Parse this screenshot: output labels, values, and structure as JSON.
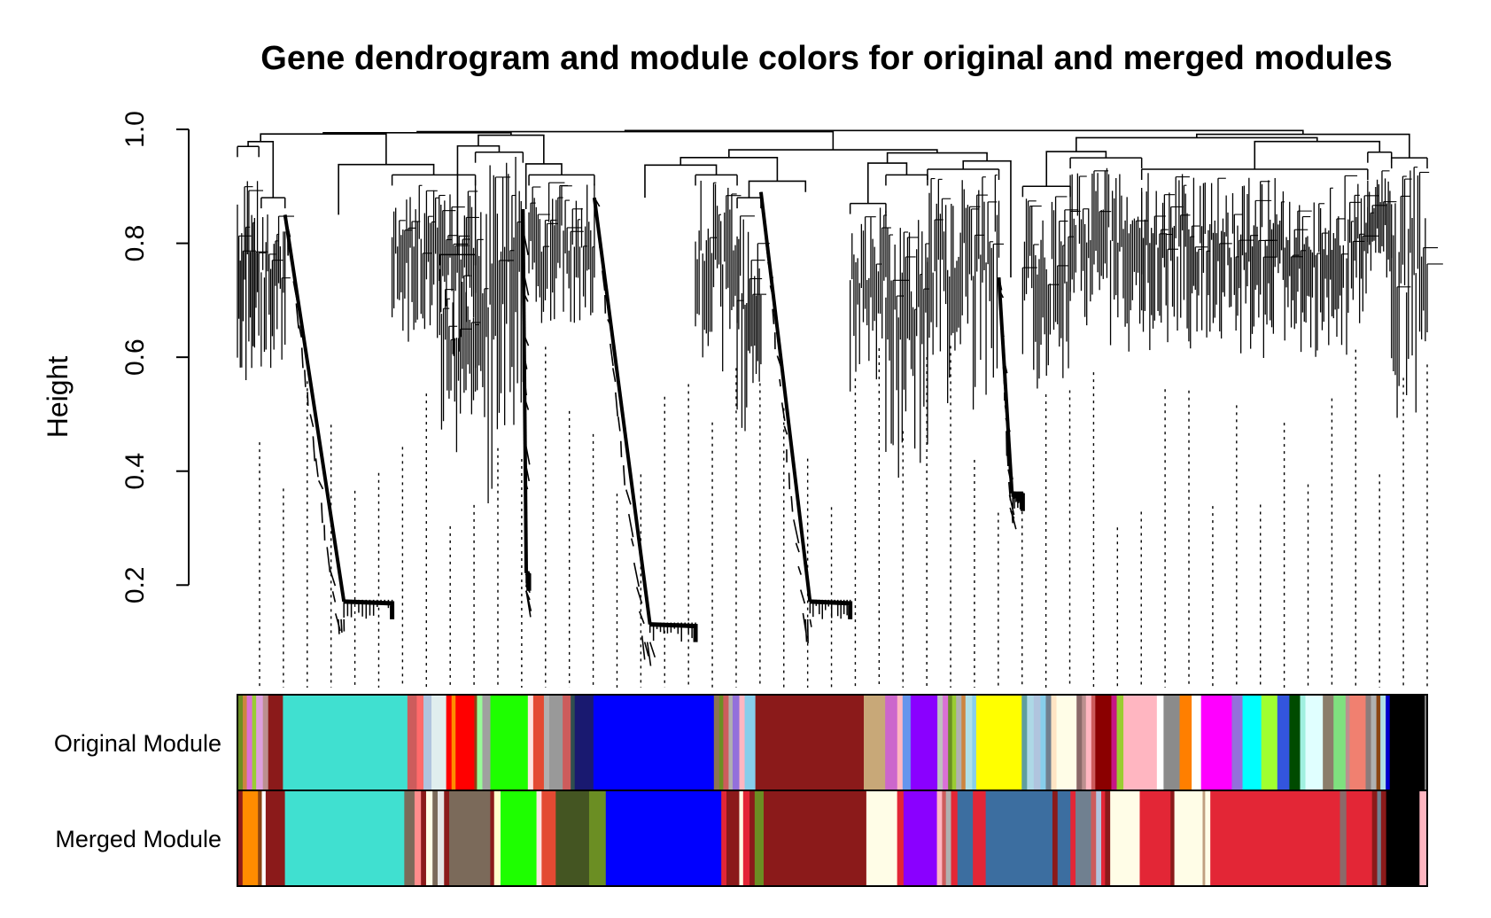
{
  "chart_data": {
    "type": "dendrogram",
    "title": "Gene dendrogram and module colors for original and merged modules",
    "ylabel": "Height",
    "ylim": [
      0.02,
      1.0
    ],
    "y_ticks": [
      {
        "value": 0.2,
        "label": "0.2"
      },
      {
        "value": 0.4,
        "label": "0.4"
      },
      {
        "value": 0.6,
        "label": "0.6"
      },
      {
        "value": 0.8,
        "label": "0.8"
      },
      {
        "value": 1.0,
        "label": "1.0"
      }
    ],
    "color_rows": [
      {
        "label": "Original Module",
        "segments": [
          {
            "color": "#6b8e23",
            "w": 0.004
          },
          {
            "color": "#cd853f",
            "w": 0.003
          },
          {
            "color": "#da70d6",
            "w": 0.004
          },
          {
            "color": "#9acd32",
            "w": 0.003
          },
          {
            "color": "#dda0dd",
            "w": 0.005
          },
          {
            "color": "#bc8f8f",
            "w": 0.004
          },
          {
            "color": "#8b1a1a",
            "w": 0.011
          },
          {
            "color": "#40e0d0",
            "w": 0.093
          },
          {
            "color": "#cd5c5c",
            "w": 0.007
          },
          {
            "color": "#ff6a6a",
            "w": 0.005
          },
          {
            "color": "#b0c4de",
            "w": 0.006
          },
          {
            "color": "#e0eeee",
            "w": 0.011
          },
          {
            "color": "#ff0000",
            "w": 0.004
          },
          {
            "color": "#ff8c00",
            "w": 0.003
          },
          {
            "color": "#ff0000",
            "w": 0.014
          },
          {
            "color": "#8b4513",
            "w": 0.002
          },
          {
            "color": "#98fb98",
            "w": 0.004
          },
          {
            "color": "#a0a0a0",
            "w": 0.006
          },
          {
            "color": "#1eff00",
            "w": 0.028
          },
          {
            "color": "#ffe4e1",
            "w": 0.004
          },
          {
            "color": "#e34a33",
            "w": 0.008
          },
          {
            "color": "#b0b0b0",
            "w": 0.004
          },
          {
            "color": "#999999",
            "w": 0.01
          },
          {
            "color": "#cd5c5c",
            "w": 0.006
          },
          {
            "color": "#2f4f4f",
            "w": 0.003
          },
          {
            "color": "#191970",
            "w": 0.014
          },
          {
            "color": "#0000ff",
            "w": 0.09
          },
          {
            "color": "#8b7355",
            "w": 0.004
          },
          {
            "color": "#6b8e23",
            "w": 0.003
          },
          {
            "color": "#cd5c5c",
            "w": 0.004
          },
          {
            "color": "#b0b0b0",
            "w": 0.003
          },
          {
            "color": "#9370db",
            "w": 0.005
          },
          {
            "color": "#ffb6c1",
            "w": 0.004
          },
          {
            "color": "#87ceeb",
            "w": 0.008
          },
          {
            "color": "#8b1a1a",
            "w": 0.003
          },
          {
            "color": "#8b1a1a",
            "w": 0.078
          },
          {
            "color": "#c8a878",
            "w": 0.016
          },
          {
            "color": "#cc66cc",
            "w": 0.009
          },
          {
            "color": "#ffb6c1",
            "w": 0.004
          },
          {
            "color": "#6495ed",
            "w": 0.006
          },
          {
            "color": "#8a00ff",
            "w": 0.02
          },
          {
            "color": "#c0c0c0",
            "w": 0.004
          },
          {
            "color": "#da70d6",
            "w": 0.004
          },
          {
            "color": "#6b8e23",
            "w": 0.003
          },
          {
            "color": "#9acd32",
            "w": 0.003
          },
          {
            "color": "#b0b0b0",
            "w": 0.004
          },
          {
            "color": "#cd853f",
            "w": 0.003
          },
          {
            "color": "#b0e0e6",
            "w": 0.005
          },
          {
            "color": "#87ceeb",
            "w": 0.003
          },
          {
            "color": "#ffff00",
            "w": 0.034
          },
          {
            "color": "#5f9ea0",
            "w": 0.004
          },
          {
            "color": "#add8e6",
            "w": 0.005
          },
          {
            "color": "#b0c4de",
            "w": 0.005
          },
          {
            "color": "#87ceeb",
            "w": 0.004
          },
          {
            "color": "#708090",
            "w": 0.004
          },
          {
            "color": "#ffe4c4",
            "w": 0.004
          },
          {
            "color": "#fffde7",
            "w": 0.015
          },
          {
            "color": "#8b6969",
            "w": 0.004
          },
          {
            "color": "#bc8f8f",
            "w": 0.003
          },
          {
            "color": "#ffb6c1",
            "w": 0.004
          },
          {
            "color": "#cd5c5c",
            "w": 0.003
          },
          {
            "color": "#8b0000",
            "w": 0.012
          },
          {
            "color": "#c71585",
            "w": 0.004
          },
          {
            "color": "#9acd32",
            "w": 0.005
          },
          {
            "color": "#ffb6c1",
            "w": 0.025
          },
          {
            "color": "#ffffff",
            "w": 0.005
          },
          {
            "color": "#8b8b8b",
            "w": 0.012
          },
          {
            "color": "#ff7f00",
            "w": 0.009
          },
          {
            "color": "#ffffff",
            "w": 0.007
          },
          {
            "color": "#ff00ff",
            "w": 0.023
          },
          {
            "color": "#9370db",
            "w": 0.008
          },
          {
            "color": "#00ffff",
            "w": 0.014
          },
          {
            "color": "#a0ff30",
            "w": 0.012
          },
          {
            "color": "#3355dd",
            "w": 0.009
          },
          {
            "color": "#004b00",
            "w": 0.008
          },
          {
            "color": "#a0f0e0",
            "w": 0.004
          },
          {
            "color": "#e0ffff",
            "w": 0.013
          },
          {
            "color": "#8b7d6b",
            "w": 0.008
          },
          {
            "color": "#7fe07f",
            "w": 0.009
          },
          {
            "color": "#bc8f8f",
            "w": 0.003
          },
          {
            "color": "#f08070",
            "w": 0.012
          },
          {
            "color": "#8b7d7b",
            "w": 0.004
          },
          {
            "color": "#b0b0b0",
            "w": 0.004
          },
          {
            "color": "#8b4513",
            "w": 0.003
          },
          {
            "color": "#b0e0e6",
            "w": 0.004
          },
          {
            "color": "#0000cd",
            "w": 0.003
          },
          {
            "color": "#000000",
            "w": 0.026
          },
          {
            "color": "#7f7f7f",
            "w": 0.002
          }
        ]
      },
      {
        "label": "Merged Module",
        "segments": [
          {
            "color": "#8b1a1a",
            "w": 0.004
          },
          {
            "color": "#ff8c00",
            "w": 0.012
          },
          {
            "color": "#8b4513",
            "w": 0.003
          },
          {
            "color": "#ffffff",
            "w": 0.003
          },
          {
            "color": "#8b1a1a",
            "w": 0.015
          },
          {
            "color": "#40e0d0",
            "w": 0.093
          },
          {
            "color": "#7b6a5a",
            "w": 0.008
          },
          {
            "color": "#ff8c8c",
            "w": 0.005
          },
          {
            "color": "#8b1a1a",
            "w": 0.004
          },
          {
            "color": "#fffde7",
            "w": 0.005
          },
          {
            "color": "#7b6a5a",
            "w": 0.004
          },
          {
            "color": "#e5e5e5",
            "w": 0.005
          },
          {
            "color": "#8b1a1a",
            "w": 0.004
          },
          {
            "color": "#7b6a5a",
            "w": 0.032
          },
          {
            "color": "#8b1a1a",
            "w": 0.003
          },
          {
            "color": "#ffffcc",
            "w": 0.005
          },
          {
            "color": "#1eff00",
            "w": 0.028
          },
          {
            "color": "#ffe4e1",
            "w": 0.004
          },
          {
            "color": "#e34a33",
            "w": 0.011
          },
          {
            "color": "#445522",
            "w": 0.026
          },
          {
            "color": "#6b8e23",
            "w": 0.013
          },
          {
            "color": "#0000ff",
            "w": 0.09
          },
          {
            "color": "#e32636",
            "w": 0.004
          },
          {
            "color": "#8b1a1a",
            "w": 0.01
          },
          {
            "color": "#fffde7",
            "w": 0.003
          },
          {
            "color": "#e32636",
            "w": 0.005
          },
          {
            "color": "#8b1a1a",
            "w": 0.004
          },
          {
            "color": "#6b8e23",
            "w": 0.007
          },
          {
            "color": "#8b1a1a",
            "w": 0.08
          },
          {
            "color": "#fffde7",
            "w": 0.024
          },
          {
            "color": "#e32636",
            "w": 0.005
          },
          {
            "color": "#8a00ff",
            "w": 0.026
          },
          {
            "color": "#ffb6c1",
            "w": 0.004
          },
          {
            "color": "#cd5c5c",
            "w": 0.003
          },
          {
            "color": "#b0b0b0",
            "w": 0.004
          },
          {
            "color": "#e32636",
            "w": 0.005
          },
          {
            "color": "#3c6ea0",
            "w": 0.012
          },
          {
            "color": "#e32636",
            "w": 0.01
          },
          {
            "color": "#3c6ea0",
            "w": 0.052
          },
          {
            "color": "#8b1a1a",
            "w": 0.004
          },
          {
            "color": "#3c6ea0",
            "w": 0.01
          },
          {
            "color": "#e32636",
            "w": 0.004
          },
          {
            "color": "#708090",
            "w": 0.012
          },
          {
            "color": "#cd5c5c",
            "w": 0.004
          },
          {
            "color": "#b0c4de",
            "w": 0.004
          },
          {
            "color": "#e32636",
            "w": 0.003
          },
          {
            "color": "#8b1a1a",
            "w": 0.004
          },
          {
            "color": "#fffde7",
            "w": 0.023
          },
          {
            "color": "#e32636",
            "w": 0.024
          },
          {
            "color": "#8b1a1a",
            "w": 0.003
          },
          {
            "color": "#fffde7",
            "w": 0.022
          },
          {
            "color": "#c0a080",
            "w": 0.002
          },
          {
            "color": "#fffde7",
            "w": 0.004
          },
          {
            "color": "#e32636",
            "w": 0.101
          },
          {
            "color": "#8b6969",
            "w": 0.005
          },
          {
            "color": "#e32636",
            "w": 0.02
          },
          {
            "color": "#8b1a1a",
            "w": 0.004
          },
          {
            "color": "#708090",
            "w": 0.003
          },
          {
            "color": "#8b1a1a",
            "w": 0.004
          },
          {
            "color": "#000000",
            "w": 0.026
          },
          {
            "color": "#ffb6c1",
            "w": 0.006
          }
        ]
      }
    ]
  }
}
